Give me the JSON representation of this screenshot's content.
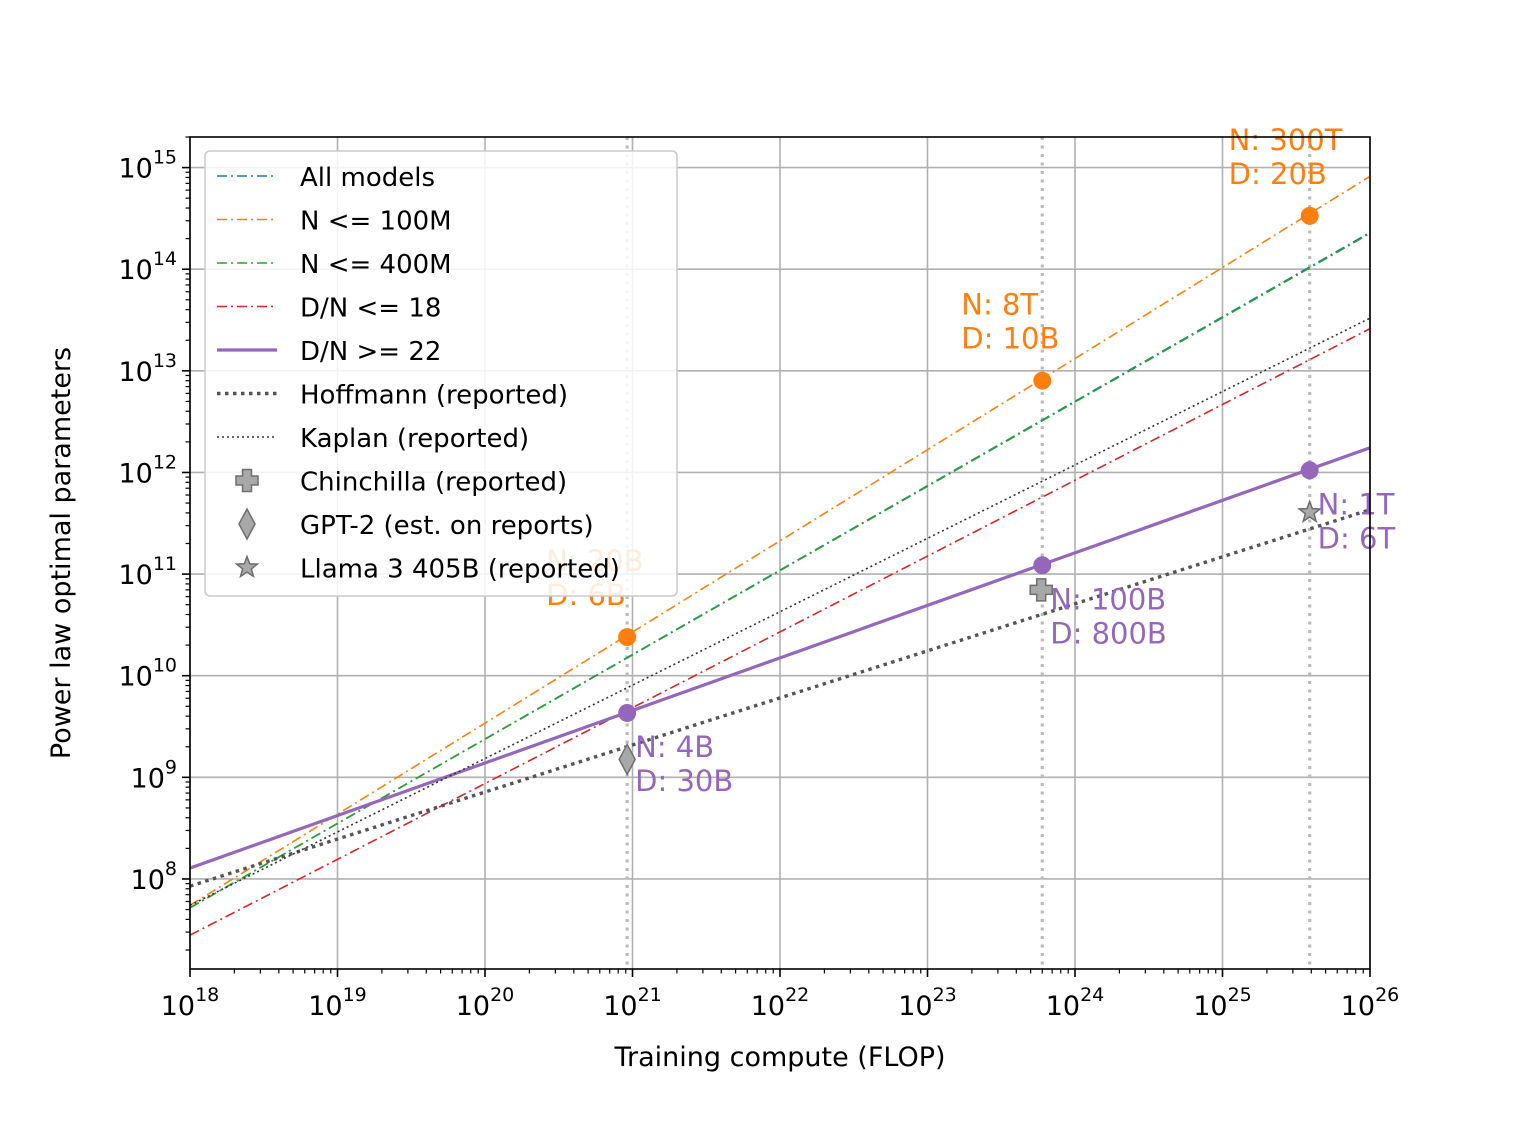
{
  "chart_data": {
    "type": "line",
    "xscale": "log",
    "yscale": "log",
    "xlim": [
      1e+18,
      1e+26
    ],
    "ylim": [
      13000000.0,
      2000000000000000.0
    ],
    "xlabel": "Training compute (FLOP)",
    "ylabel": "Power law optimal parameters",
    "grid": true,
    "legend_position": "upper-left",
    "x_ticks": [
      {
        "value": 1e+18,
        "base": "10",
        "exp": "18"
      },
      {
        "value": 1e+19,
        "base": "10",
        "exp": "19"
      },
      {
        "value": 1e+20,
        "base": "10",
        "exp": "20"
      },
      {
        "value": 1e+21,
        "base": "10",
        "exp": "21"
      },
      {
        "value": 1e+22,
        "base": "10",
        "exp": "22"
      },
      {
        "value": 1e+23,
        "base": "10",
        "exp": "23"
      },
      {
        "value": 1e+24,
        "base": "10",
        "exp": "24"
      },
      {
        "value": 1e+25,
        "base": "10",
        "exp": "25"
      },
      {
        "value": 1e+26,
        "base": "10",
        "exp": "26"
      }
    ],
    "y_ticks": [
      {
        "value": 100000000.0,
        "base": "10",
        "exp": "8"
      },
      {
        "value": 1000000000.0,
        "base": "10",
        "exp": "9"
      },
      {
        "value": 10000000000.0,
        "base": "10",
        "exp": "10"
      },
      {
        "value": 100000000000.0,
        "base": "10",
        "exp": "11"
      },
      {
        "value": 1000000000000.0,
        "base": "10",
        "exp": "12"
      },
      {
        "value": 10000000000000.0,
        "base": "10",
        "exp": "13"
      },
      {
        "value": 100000000000000.0,
        "base": "10",
        "exp": "14"
      },
      {
        "value": 1000000000000000.0,
        "base": "10",
        "exp": "15"
      }
    ],
    "vlines": [
      9.2e+20,
      6e+23,
      3.9e+25
    ],
    "series": [
      {
        "name": "All models",
        "color": "#1f77b4",
        "style": "dashdot",
        "width": 1.6,
        "x": [
          1e+18,
          1e+26
        ],
        "y": [
          52000000.0,
          230000000000000.0
        ]
      },
      {
        "name": "N <= 100M",
        "color": "#ff7f0e",
        "style": "dashdot",
        "width": 1.6,
        "x": [
          1e+18,
          1e+26
        ],
        "y": [
          55000000.0,
          820000000000000.0
        ]
      },
      {
        "name": "N <= 400M",
        "color": "#2ca02c",
        "style": "dashdot",
        "width": 1.6,
        "x": [
          1e+18,
          1e+26
        ],
        "y": [
          52000000.0,
          225000000000000.0
        ]
      },
      {
        "name": "D/N <= 18",
        "color": "#d62728",
        "style": "dashdot",
        "width": 1.6,
        "x": [
          1e+18,
          1e+26
        ],
        "y": [
          28000000.0,
          26000000000000.0
        ]
      },
      {
        "name": "D/N >= 22",
        "color": "#9467bd",
        "style": "solid",
        "width": 3.2,
        "x": [
          1e+18,
          1e+26
        ],
        "y": [
          128000000.0,
          1750000000000.0
        ]
      },
      {
        "name": "Hoffmann (reported)",
        "color": "#555555",
        "style": "dotted-thick",
        "width": 3.4,
        "x": [
          1e+18,
          1e+26
        ],
        "y": [
          85000000.0,
          430000000000.0
        ]
      },
      {
        "name": "Kaplan (reported)",
        "color": "#333333",
        "style": "dotted",
        "width": 1.6,
        "x": [
          1e+18,
          1e+26
        ],
        "y": [
          55000000.0,
          33000000000000.0
        ]
      }
    ],
    "reported_points": [
      {
        "name": "Chinchilla (reported)",
        "marker": "plus",
        "x": 5.9e+23,
        "y": 70000000000.0
      },
      {
        "name": "GPT-2 (est. on reports)",
        "marker": "diamond",
        "x": 9.2e+20,
        "y": 1500000000.0
      },
      {
        "name": "Llama 3 405B (reported)",
        "marker": "star",
        "x": 3.9e+25,
        "y": 405000000000.0
      }
    ],
    "orange_points": [
      {
        "x": 9.2e+20,
        "y": 24000000000.0,
        "label1": "N: 20B",
        "label2": "D: 6B"
      },
      {
        "x": 6e+23,
        "y": 8000000000000.0,
        "label1": "N: 8T",
        "label2": "D: 10B"
      },
      {
        "x": 3.9e+25,
        "y": 335000000000000.0,
        "label1": "N: 300T",
        "label2": "D: 20B"
      }
    ],
    "purple_points": [
      {
        "x": 9.2e+20,
        "y": 4300000000.0,
        "label1": "N: 4B",
        "label2": "D: 30B"
      },
      {
        "x": 6e+23,
        "y": 122000000000.0,
        "label1": "N: 100B",
        "label2": "D: 800B"
      },
      {
        "x": 3.9e+25,
        "y": 1050000000000.0,
        "label1": "N: 1T",
        "label2": "D: 6T"
      }
    ],
    "colors": {
      "orange": "#ff7f0e",
      "purple": "#9467bd",
      "grey": "#999999",
      "vline": "#bbbbbb"
    }
  }
}
